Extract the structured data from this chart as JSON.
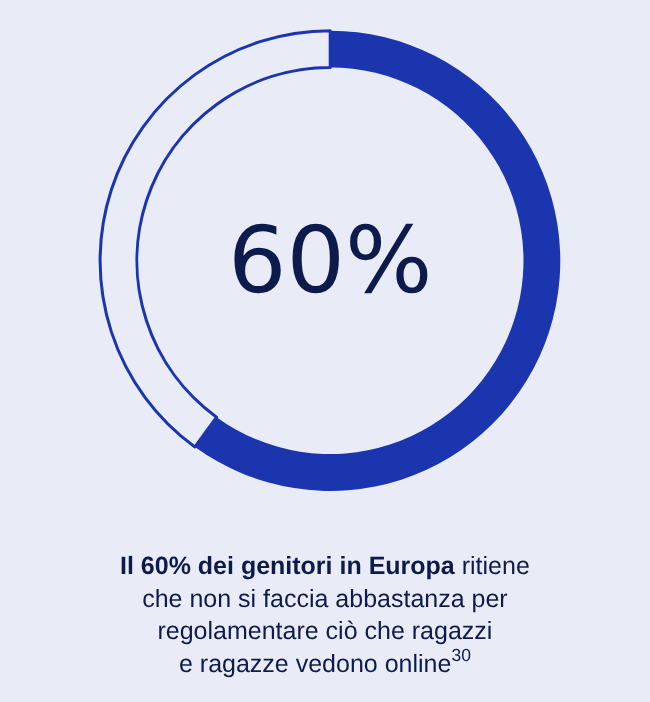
{
  "chart_data": {
    "type": "donut",
    "categories": [
      null,
      null
    ],
    "values": [
      60,
      40
    ],
    "colors": [
      "#1a35ad",
      "#e9ecf7"
    ],
    "value_labels": [
      "60%",
      null
    ],
    "annotations": [
      "Il 60% dei genitori in Europa",
      " ritiene\nche non si faccia abbastanza per\nregolamentare ciò che ragazzi\ne ragazze vedono online$^{30}$"
    ]
  }
}
